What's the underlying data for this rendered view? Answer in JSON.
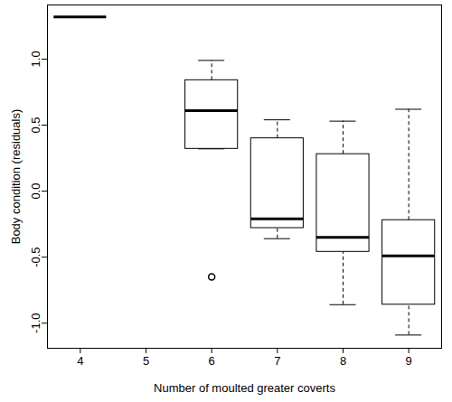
{
  "chart_data": {
    "type": "box",
    "x_label": "Number of moulted greater coverts",
    "y_label": "Body condition (residuals)",
    "boxes": [
      {
        "x": 4,
        "whisker_low": 1.32,
        "q1": 1.32,
        "median": 1.32,
        "q3": 1.32,
        "whisker_high": 1.32,
        "outliers": []
      },
      {
        "x": 6,
        "whisker_low": 0.32,
        "q1": 0.32,
        "median": 0.61,
        "q3": 0.84,
        "whisker_high": 0.99,
        "outliers": [
          -0.65
        ]
      },
      {
        "x": 7,
        "whisker_low": -0.36,
        "q1": -0.28,
        "median": -0.21,
        "q3": 0.4,
        "whisker_high": 0.54,
        "outliers": []
      },
      {
        "x": 8,
        "whisker_low": -0.86,
        "q1": -0.46,
        "median": -0.35,
        "q3": 0.28,
        "whisker_high": 0.53,
        "outliers": []
      },
      {
        "x": 9,
        "whisker_low": -1.09,
        "q1": -0.86,
        "median": -0.49,
        "q3": -0.22,
        "whisker_high": 0.62,
        "outliers": []
      }
    ],
    "color": "#000000",
    "xlim": [
      3.5,
      9.5
    ],
    "xticks": [
      4,
      5,
      6,
      7,
      8,
      9
    ],
    "ylim": [
      -1.19,
      1.41
    ],
    "yticks": [
      {
        "value": -1,
        "label": "-1.0"
      },
      {
        "value": -0.5,
        "label": "-0.5"
      },
      {
        "value": 0,
        "label": "0.0"
      },
      {
        "value": 0.5,
        "label": "0.5"
      },
      {
        "value": 1,
        "label": "1.0"
      }
    ],
    "grid": false
  }
}
